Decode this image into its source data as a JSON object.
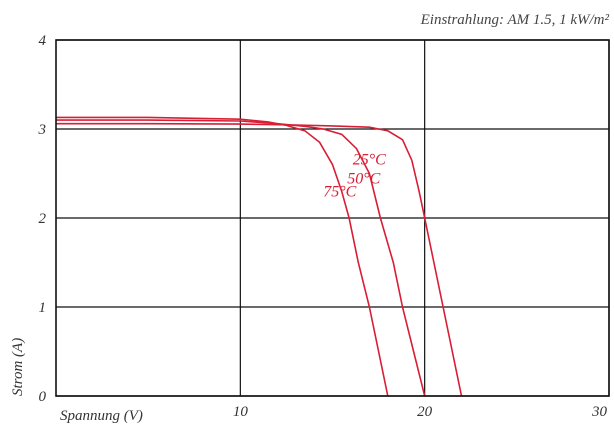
{
  "chart_data": {
    "type": "line",
    "title": "",
    "annotation": "Einstrahlung: AM 1.5, 1 kW/m²",
    "xlabel": "Spannung (V)",
    "ylabel": "Strom (A)",
    "xlim": [
      0,
      30
    ],
    "ylim": [
      0,
      4
    ],
    "x_ticks": [
      "10",
      "20",
      "30"
    ],
    "y_ticks": [
      "0",
      "1",
      "2",
      "3",
      "4"
    ],
    "grid": true,
    "curve_color": "#d81e35",
    "series": [
      {
        "name": "25°C",
        "points": [
          [
            0,
            3.06
          ],
          [
            5,
            3.06
          ],
          [
            10,
            3.055
          ],
          [
            13,
            3.045
          ],
          [
            15,
            3.035
          ],
          [
            17,
            3.02
          ],
          [
            18,
            2.98
          ],
          [
            18.8,
            2.88
          ],
          [
            19.3,
            2.65
          ],
          [
            19.7,
            2.3
          ],
          [
            20.0,
            2.0
          ],
          [
            20.5,
            1.5
          ],
          [
            21.0,
            1.0
          ],
          [
            21.5,
            0.5
          ],
          [
            22.0,
            0.0
          ]
        ]
      },
      {
        "name": "50°C",
        "points": [
          [
            0,
            3.1
          ],
          [
            5,
            3.1
          ],
          [
            10,
            3.09
          ],
          [
            12,
            3.06
          ],
          [
            13.5,
            3.03
          ],
          [
            14.5,
            3.0
          ],
          [
            15.5,
            2.94
          ],
          [
            16.3,
            2.78
          ],
          [
            17.0,
            2.5
          ],
          [
            17.6,
            2.0
          ],
          [
            18.3,
            1.5
          ],
          [
            18.8,
            1.0
          ],
          [
            19.4,
            0.5
          ],
          [
            20.0,
            0.0
          ]
        ]
      },
      {
        "name": "75°C",
        "points": [
          [
            0,
            3.13
          ],
          [
            5,
            3.13
          ],
          [
            10,
            3.11
          ],
          [
            11.5,
            3.08
          ],
          [
            12.5,
            3.04
          ],
          [
            13.5,
            2.98
          ],
          [
            14.3,
            2.85
          ],
          [
            15.0,
            2.6
          ],
          [
            15.5,
            2.3
          ],
          [
            15.9,
            2.0
          ],
          [
            16.4,
            1.5
          ],
          [
            17.0,
            1.0
          ],
          [
            17.5,
            0.5
          ],
          [
            18.0,
            0.0
          ]
        ]
      }
    ]
  }
}
